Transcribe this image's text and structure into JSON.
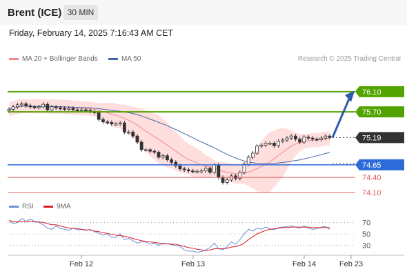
{
  "header": {
    "symbol": "Brent (ICE)",
    "timeframe": "30 MIN",
    "datetime": "Friday, February 14, 2025 7:16:43 AM CET"
  },
  "legend": {
    "ma": "MA 20 + Bollinger Bands",
    "ma50": "MA 50",
    "rsi": "RSI",
    "rsi_ma": "9MA",
    "credit": "Research © 2025 Trading Central"
  },
  "colors": {
    "resistance": "#52a301",
    "support": "#2e6bd8",
    "support_red": "#e05c5c",
    "last": "#333333",
    "ma20": "#f08a8a",
    "band": "#ffd6d6",
    "ma50": "#4266a8",
    "rsi": "#6a8fd8",
    "rsi_ma": "#d71920",
    "arrow": "#2d5ba8"
  },
  "chart_data": [
    {
      "type": "candlestick",
      "title": "",
      "ylim": [
        73.95,
        76.55
      ],
      "x_labels": [
        "Feb 12",
        "Feb 13",
        "Feb 14",
        "Feb 23"
      ],
      "close": [
        75.75,
        75.8,
        75.84,
        75.86,
        75.82,
        75.8,
        75.79,
        75.8,
        75.85,
        75.74,
        75.8,
        75.78,
        75.77,
        75.76,
        75.77,
        75.74,
        75.73,
        75.74,
        75.73,
        75.71,
        75.68,
        75.55,
        75.5,
        75.49,
        75.46,
        75.46,
        75.48,
        75.3,
        75.3,
        75.22,
        75.1,
        74.95,
        74.95,
        74.92,
        74.9,
        74.8,
        74.83,
        74.75,
        74.7,
        74.63,
        74.57,
        74.55,
        74.53,
        74.52,
        74.52,
        74.53,
        74.58,
        74.5,
        74.65,
        74.4,
        74.3,
        74.35,
        74.43,
        74.38,
        74.5,
        74.66,
        74.8,
        74.88,
        75.02,
        75.04,
        75.08,
        75.08,
        75.03,
        75.12,
        75.14,
        75.18,
        75.22,
        75.16,
        75.1,
        75.2,
        75.18,
        75.16,
        75.15,
        75.18,
        75.22,
        75.19
      ],
      "levels": [
        {
          "label": "76.10",
          "value": 76.1,
          "kind": "resistance"
        },
        {
          "label": "75.70",
          "value": 75.7,
          "kind": "resistance"
        },
        {
          "label": "75.19",
          "value": 75.19,
          "kind": "last"
        },
        {
          "label": "74.65",
          "value": 74.65,
          "kind": "pivot"
        },
        {
          "label": "74.40",
          "value": 74.4,
          "kind": "support"
        },
        {
          "label": "74.10",
          "value": 74.1,
          "kind": "support"
        }
      ],
      "series": [
        {
          "name": "MA 20 + Bollinger Bands",
          "type": "line+band"
        },
        {
          "name": "MA 50",
          "type": "line"
        }
      ],
      "grid": false
    },
    {
      "type": "line",
      "title": "",
      "ylim": [
        15,
        85
      ],
      "yticks": [
        30,
        50,
        70
      ],
      "series": [
        {
          "name": "RSI",
          "values": [
            74,
            68,
            70,
            77,
            72,
            76,
            72,
            70,
            66,
            60,
            58,
            64,
            60,
            58,
            56,
            60,
            57,
            58,
            56,
            58,
            54,
            51,
            48,
            50,
            44,
            44,
            50,
            40,
            42,
            38,
            34,
            36,
            36,
            32,
            34,
            30,
            34,
            33,
            31,
            30,
            28,
            22,
            20,
            20,
            18,
            19,
            22,
            26,
            34,
            24,
            22,
            28,
            36,
            32,
            40,
            50,
            58,
            55,
            60,
            58,
            62,
            59,
            57,
            61,
            62,
            63,
            64,
            62,
            60,
            64,
            60,
            58,
            59,
            62,
            63,
            58
          ]
        },
        {
          "name": "9MA",
          "values": [
            73,
            72,
            71,
            72,
            72,
            72,
            71,
            71,
            70,
            68,
            66,
            66,
            64,
            62,
            60,
            60,
            59,
            58,
            57,
            57,
            55,
            54,
            52,
            51,
            49,
            48,
            47,
            46,
            44,
            42,
            40,
            38,
            37,
            36,
            35,
            34,
            33,
            33,
            32,
            32,
            30,
            28,
            26,
            25,
            23,
            22,
            21,
            22,
            24,
            24,
            24,
            25,
            27,
            28,
            30,
            34,
            40,
            45,
            50,
            53,
            56,
            58,
            59,
            60,
            61,
            61,
            62,
            62,
            62,
            62,
            62,
            61,
            61,
            61,
            61,
            61
          ]
        }
      ]
    }
  ]
}
